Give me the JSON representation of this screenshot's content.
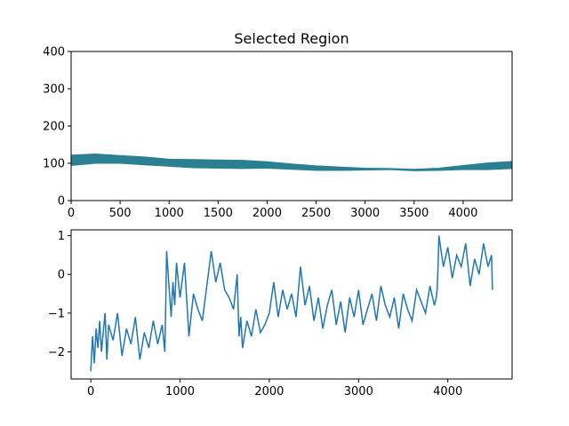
{
  "chart_data": [
    {
      "type": "area",
      "title": "Selected Region",
      "xlim": [
        0,
        4500
      ],
      "ylim": [
        0,
        400
      ],
      "xticks": [
        0,
        500,
        1000,
        1500,
        2000,
        2500,
        3000,
        3500,
        4000
      ],
      "yticks": [
        0,
        100,
        200,
        300,
        400
      ],
      "grid": false,
      "color": "#2a8090",
      "series": [
        {
          "x": [
            0,
            250,
            500,
            750,
            1000,
            1250,
            1500,
            1750,
            2000,
            2250,
            2500,
            2750,
            3000,
            3250,
            3500,
            3750,
            4000,
            4250,
            4500
          ],
          "upper": [
            122,
            125,
            121,
            117,
            111,
            110,
            109,
            108,
            104,
            98,
            93,
            90,
            87,
            86,
            84,
            87,
            94,
            101,
            105
          ],
          "lower": [
            94,
            100,
            100,
            96,
            92,
            88,
            87,
            86,
            87,
            84,
            81,
            81,
            82,
            83,
            80,
            81,
            83,
            83,
            86
          ]
        }
      ]
    },
    {
      "type": "line",
      "title": "",
      "xlim": [
        -220,
        4720
      ],
      "ylim": [
        -2.7,
        1.15
      ],
      "xticks": [
        0,
        1000,
        2000,
        3000,
        4000
      ],
      "yticks": [
        -2,
        -1,
        0,
        1
      ],
      "ytick_labels": [
        "−2",
        "−1",
        "0",
        "1"
      ],
      "grid": false,
      "color": "#1f77b4",
      "series": [
        {
          "x": [
            0,
            20,
            40,
            60,
            80,
            100,
            120,
            140,
            160,
            180,
            200,
            250,
            300,
            350,
            400,
            450,
            500,
            550,
            600,
            650,
            700,
            750,
            800,
            830,
            840,
            850,
            880,
            900,
            920,
            940,
            960,
            1000,
            1050,
            1100,
            1150,
            1200,
            1250,
            1300,
            1350,
            1400,
            1450,
            1500,
            1550,
            1600,
            1640,
            1660,
            1680,
            1700,
            1750,
            1800,
            1850,
            1900,
            1950,
            2000,
            2050,
            2100,
            2150,
            2200,
            2250,
            2300,
            2350,
            2400,
            2450,
            2500,
            2550,
            2600,
            2650,
            2700,
            2750,
            2800,
            2850,
            2900,
            2950,
            3000,
            3050,
            3100,
            3150,
            3200,
            3250,
            3300,
            3350,
            3400,
            3450,
            3500,
            3550,
            3600,
            3650,
            3700,
            3750,
            3800,
            3850,
            3870,
            3880,
            3890,
            3900,
            3950,
            4000,
            4050,
            4100,
            4150,
            4200,
            4250,
            4300,
            4350,
            4400,
            4450,
            4490,
            4500
          ],
          "y": [
            -2.5,
            -1.6,
            -2.3,
            -1.4,
            -1.9,
            -1.2,
            -2.0,
            -1.5,
            -1.0,
            -2.2,
            -1.3,
            -1.7,
            -1.0,
            -2.1,
            -1.4,
            -1.8,
            -1.1,
            -2.2,
            -1.5,
            -1.9,
            -1.2,
            -1.8,
            -1.3,
            -2.0,
            -0.8,
            0.6,
            -0.4,
            -1.1,
            -0.2,
            -0.8,
            0.3,
            -0.6,
            0.3,
            -1.6,
            -0.5,
            -0.9,
            -1.2,
            -0.3,
            0.6,
            -0.2,
            0.3,
            -0.4,
            -0.6,
            -0.9,
            0.0,
            -1.6,
            -1.1,
            -1.9,
            -1.2,
            -1.6,
            -0.9,
            -1.5,
            -1.3,
            -1.0,
            -0.2,
            -1.1,
            -0.4,
            -0.9,
            -0.5,
            -1.1,
            0.2,
            -0.8,
            -0.3,
            -1.2,
            -0.6,
            -1.4,
            -0.8,
            -0.4,
            -1.3,
            -0.7,
            -1.5,
            -0.6,
            -1.1,
            -0.4,
            -1.3,
            -0.9,
            -0.5,
            -1.2,
            -0.3,
            -0.8,
            -1.1,
            -0.6,
            -1.4,
            -0.5,
            -0.9,
            -1.2,
            -0.4,
            -0.7,
            -1.0,
            -0.3,
            -0.8,
            -0.6,
            -0.4,
            0.2,
            1.0,
            0.2,
            0.7,
            -0.1,
            0.5,
            0.2,
            0.8,
            -0.3,
            0.4,
            0.0,
            0.8,
            0.2,
            0.5,
            -0.4
          ]
        }
      ]
    }
  ]
}
